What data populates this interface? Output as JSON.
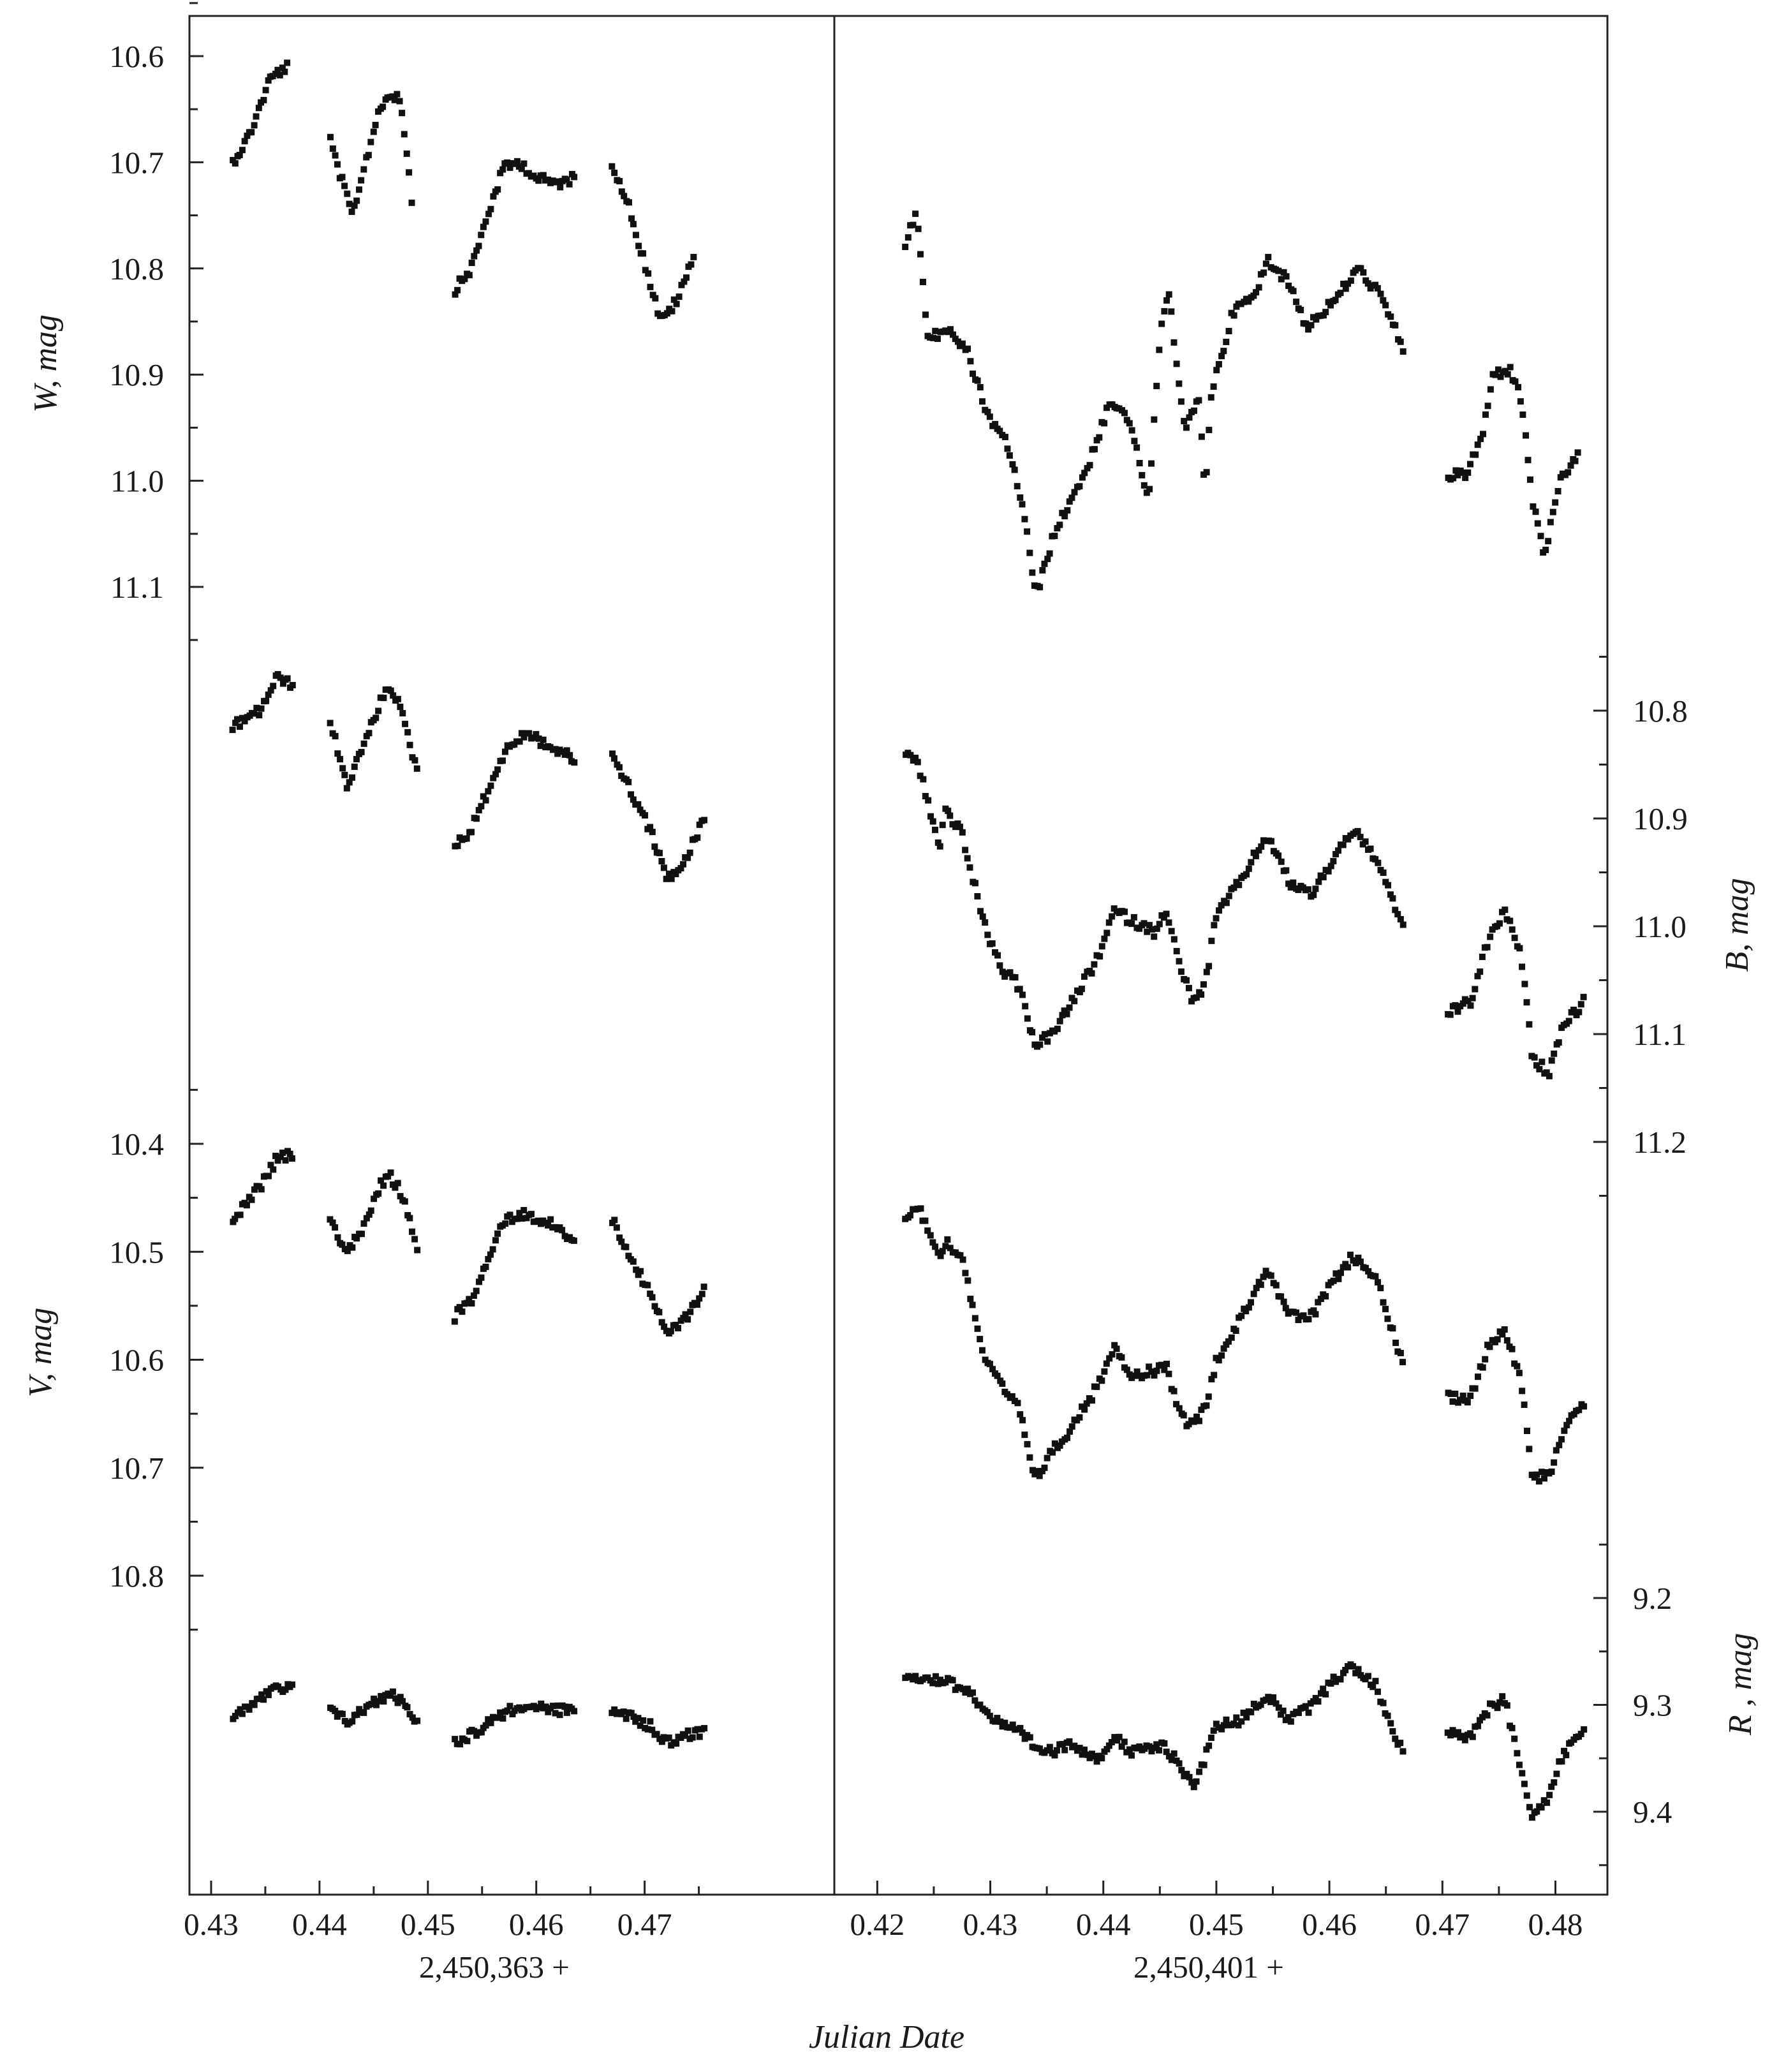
{
  "chart_data": {
    "type": "scatter",
    "xlabel": "Julian Date",
    "grid": false,
    "legend": "none",
    "marker_color": "#111111",
    "panels": [
      {
        "id": "left",
        "date_offset_label": "2,450,363 +",
        "x_ticks": [
          "0.43",
          "0.44",
          "0.45",
          "0.46",
          "0.47"
        ],
        "xlim": [
          0.428,
          0.4875
        ]
      },
      {
        "id": "right",
        "date_offset_label": "2,450,401 +",
        "x_ticks": [
          "0.42",
          "0.43",
          "0.44",
          "0.45",
          "0.46",
          "0.47",
          "0.48"
        ],
        "xlim": [
          0.4162,
          0.4846
        ]
      }
    ],
    "bands": [
      {
        "name": "W",
        "ylabel": "W, mag",
        "axis_side": "left",
        "y_ticks": [
          "10.6",
          "10.7",
          "10.8",
          "10.9",
          "11.0",
          "11.1"
        ],
        "y_anchor": [
          10.6,
          11.1
        ],
        "nodes_left": [
          [
            0.432,
            10.7
          ],
          [
            0.4335,
            10.675
          ],
          [
            0.4355,
            10.62
          ],
          [
            0.437,
            10.61
          ],
          [
            0.441,
            10.68
          ],
          [
            0.443,
            10.75
          ],
          [
            0.4445,
            10.69
          ],
          [
            0.4455,
            10.65
          ],
          [
            0.4465,
            10.635
          ],
          [
            0.4475,
            10.64
          ],
          [
            0.4485,
            10.735
          ],
          [
            0.4525,
            10.82
          ],
          [
            0.454,
            10.8
          ],
          [
            0.4555,
            10.75
          ],
          [
            0.457,
            10.705
          ],
          [
            0.4585,
            10.7
          ],
          [
            0.46,
            10.715
          ],
          [
            0.462,
            10.72
          ],
          [
            0.4635,
            10.715
          ],
          [
            0.467,
            10.7
          ],
          [
            0.4685,
            10.74
          ],
          [
            0.47,
            10.795
          ],
          [
            0.4715,
            10.85
          ],
          [
            0.473,
            10.83
          ],
          [
            0.4745,
            10.79
          ]
        ],
        "nodes_right": [
          [
            0.4225,
            10.775
          ],
          [
            0.4235,
            10.745
          ],
          [
            0.4245,
            10.87
          ],
          [
            0.426,
            10.855
          ],
          [
            0.428,
            10.88
          ],
          [
            0.43,
            10.945
          ],
          [
            0.4315,
            10.965
          ],
          [
            0.433,
            11.03
          ],
          [
            0.434,
            11.11
          ],
          [
            0.4355,
            11.055
          ],
          [
            0.437,
            11.02
          ],
          [
            0.4385,
            10.99
          ],
          [
            0.4405,
            10.93
          ],
          [
            0.442,
            10.935
          ],
          [
            0.4435,
            10.995
          ],
          [
            0.444,
            11.025
          ],
          [
            0.445,
            10.865
          ],
          [
            0.4458,
            10.825
          ],
          [
            0.4472,
            10.95
          ],
          [
            0.4485,
            10.925
          ],
          [
            0.449,
            11.015
          ],
          [
            0.4495,
            10.92
          ],
          [
            0.4515,
            10.84
          ],
          [
            0.4535,
            10.825
          ],
          [
            0.4545,
            10.79
          ],
          [
            0.4565,
            10.815
          ],
          [
            0.458,
            10.855
          ],
          [
            0.4605,
            10.83
          ],
          [
            0.4625,
            10.8
          ],
          [
            0.4645,
            10.825
          ],
          [
            0.4665,
            10.875
          ],
          [
            0.4705,
            10.995
          ],
          [
            0.472,
            10.995
          ],
          [
            0.4735,
            10.96
          ],
          [
            0.4745,
            10.9
          ],
          [
            0.476,
            10.895
          ],
          [
            0.477,
            10.925
          ],
          [
            0.478,
            11.02
          ],
          [
            0.479,
            11.07
          ],
          [
            0.4805,
            11.0
          ],
          [
            0.482,
            10.975
          ]
        ]
      },
      {
        "name": "B",
        "ylabel": "B, mag",
        "axis_side": "right",
        "y_ticks": [
          "10.8",
          "10.9",
          "11.0",
          "11.1",
          "11.2"
        ],
        "y_anchor": [
          10.8,
          11.2
        ],
        "nodes_left": [
          [
            0.432,
            10.815
          ],
          [
            0.4345,
            10.8
          ],
          [
            0.436,
            10.77
          ],
          [
            0.4375,
            10.775
          ],
          [
            0.441,
            10.81
          ],
          [
            0.4425,
            10.87
          ],
          [
            0.444,
            10.835
          ],
          [
            0.4455,
            10.795
          ],
          [
            0.4465,
            10.775
          ],
          [
            0.4475,
            10.8
          ],
          [
            0.449,
            10.855
          ],
          [
            0.4525,
            10.925
          ],
          [
            0.454,
            10.91
          ],
          [
            0.4555,
            10.875
          ],
          [
            0.457,
            10.84
          ],
          [
            0.459,
            10.82
          ],
          [
            0.4615,
            10.835
          ],
          [
            0.4635,
            10.845
          ],
          [
            0.467,
            10.84
          ],
          [
            0.4685,
            10.87
          ],
          [
            0.4705,
            10.91
          ],
          [
            0.472,
            10.955
          ],
          [
            0.4735,
            10.945
          ],
          [
            0.4755,
            10.9
          ]
        ],
        "nodes_right": [
          [
            0.4225,
            10.84
          ],
          [
            0.4235,
            10.845
          ],
          [
            0.4245,
            10.885
          ],
          [
            0.4255,
            10.93
          ],
          [
            0.426,
            10.89
          ],
          [
            0.4275,
            10.915
          ],
          [
            0.4295,
            11.0
          ],
          [
            0.431,
            11.04
          ],
          [
            0.4325,
            11.055
          ],
          [
            0.434,
            11.11
          ],
          [
            0.4355,
            11.1
          ],
          [
            0.437,
            11.075
          ],
          [
            0.4395,
            11.03
          ],
          [
            0.441,
            10.985
          ],
          [
            0.4425,
            10.995
          ],
          [
            0.4445,
            11.005
          ],
          [
            0.4455,
            10.985
          ],
          [
            0.447,
            11.045
          ],
          [
            0.448,
            11.07
          ],
          [
            0.449,
            11.055
          ],
          [
            0.45,
            10.99
          ],
          [
            0.452,
            10.96
          ],
          [
            0.4545,
            10.915
          ],
          [
            0.4565,
            10.96
          ],
          [
            0.4585,
            10.97
          ],
          [
            0.4605,
            10.935
          ],
          [
            0.462,
            10.91
          ],
          [
            0.464,
            10.935
          ],
          [
            0.4665,
            11.0
          ],
          [
            0.4705,
            11.08
          ],
          [
            0.4725,
            11.07
          ],
          [
            0.474,
            11.015
          ],
          [
            0.4755,
            10.985
          ],
          [
            0.477,
            11.03
          ],
          [
            0.478,
            11.125
          ],
          [
            0.4795,
            11.135
          ],
          [
            0.4805,
            11.095
          ],
          [
            0.4825,
            11.07
          ]
        ]
      },
      {
        "name": "V",
        "ylabel": "V, mag",
        "axis_side": "left",
        "y_ticks": [
          "10.4",
          "10.5",
          "10.6",
          "10.7",
          "10.8"
        ],
        "y_anchor": [
          10.4,
          10.8
        ],
        "nodes_left": [
          [
            0.432,
            10.47
          ],
          [
            0.4345,
            10.44
          ],
          [
            0.436,
            10.415
          ],
          [
            0.4375,
            10.41
          ],
          [
            0.441,
            10.47
          ],
          [
            0.4425,
            10.5
          ],
          [
            0.444,
            10.48
          ],
          [
            0.4455,
            10.44
          ],
          [
            0.4465,
            10.43
          ],
          [
            0.4475,
            10.445
          ],
          [
            0.449,
            10.495
          ],
          [
            0.4525,
            10.56
          ],
          [
            0.454,
            10.545
          ],
          [
            0.4555,
            10.51
          ],
          [
            0.457,
            10.47
          ],
          [
            0.459,
            10.465
          ],
          [
            0.4615,
            10.475
          ],
          [
            0.4635,
            10.49
          ],
          [
            0.467,
            10.47
          ],
          [
            0.4685,
            10.5
          ],
          [
            0.4705,
            10.54
          ],
          [
            0.472,
            10.575
          ],
          [
            0.4735,
            10.565
          ],
          [
            0.4755,
            10.535
          ]
        ],
        "nodes_right": [
          [
            0.4225,
            10.47
          ],
          [
            0.4235,
            10.455
          ],
          [
            0.4255,
            10.505
          ],
          [
            0.426,
            10.49
          ],
          [
            0.4275,
            10.505
          ],
          [
            0.4295,
            10.6
          ],
          [
            0.431,
            10.625
          ],
          [
            0.4325,
            10.645
          ],
          [
            0.434,
            10.71
          ],
          [
            0.4355,
            10.685
          ],
          [
            0.437,
            10.665
          ],
          [
            0.4395,
            10.625
          ],
          [
            0.441,
            10.585
          ],
          [
            0.4425,
            10.615
          ],
          [
            0.4445,
            10.61
          ],
          [
            0.4455,
            10.605
          ],
          [
            0.447,
            10.655
          ],
          [
            0.448,
            10.66
          ],
          [
            0.449,
            10.645
          ],
          [
            0.45,
            10.6
          ],
          [
            0.452,
            10.565
          ],
          [
            0.4545,
            10.515
          ],
          [
            0.4565,
            10.56
          ],
          [
            0.4585,
            10.56
          ],
          [
            0.4605,
            10.525
          ],
          [
            0.462,
            10.505
          ],
          [
            0.464,
            10.52
          ],
          [
            0.4665,
            10.605
          ],
          [
            0.4705,
            10.635
          ],
          [
            0.4725,
            10.635
          ],
          [
            0.474,
            10.59
          ],
          [
            0.4755,
            10.57
          ],
          [
            0.477,
            10.62
          ],
          [
            0.478,
            10.71
          ],
          [
            0.4795,
            10.705
          ],
          [
            0.4805,
            10.67
          ],
          [
            0.4825,
            10.64
          ]
        ]
      },
      {
        "name": "R",
        "ylabel": "R , mag",
        "axis_side": "right",
        "y_ticks": [
          "9.2",
          "9.3",
          "9.4"
        ],
        "y_anchor": [
          9.2,
          9.4
        ],
        "nodes_left": [
          [
            0.432,
            9.31
          ],
          [
            0.4345,
            9.295
          ],
          [
            0.436,
            9.285
          ],
          [
            0.4375,
            9.285
          ],
          [
            0.441,
            9.305
          ],
          [
            0.4425,
            9.315
          ],
          [
            0.444,
            9.305
          ],
          [
            0.4455,
            9.295
          ],
          [
            0.4465,
            9.29
          ],
          [
            0.4475,
            9.295
          ],
          [
            0.449,
            9.315
          ],
          [
            0.4525,
            9.335
          ],
          [
            0.4545,
            9.325
          ],
          [
            0.4565,
            9.31
          ],
          [
            0.459,
            9.3
          ],
          [
            0.4615,
            9.305
          ],
          [
            0.4635,
            9.305
          ],
          [
            0.467,
            9.305
          ],
          [
            0.4685,
            9.31
          ],
          [
            0.4705,
            9.32
          ],
          [
            0.472,
            9.335
          ],
          [
            0.4735,
            9.33
          ],
          [
            0.4755,
            9.325
          ]
        ],
        "nodes_right": [
          [
            0.4225,
            9.27
          ],
          [
            0.4245,
            9.275
          ],
          [
            0.4265,
            9.28
          ],
          [
            0.428,
            9.285
          ],
          [
            0.4295,
            9.305
          ],
          [
            0.431,
            9.32
          ],
          [
            0.4325,
            9.325
          ],
          [
            0.434,
            9.34
          ],
          [
            0.4355,
            9.345
          ],
          [
            0.437,
            9.335
          ],
          [
            0.4395,
            9.35
          ],
          [
            0.441,
            9.33
          ],
          [
            0.4425,
            9.345
          ],
          [
            0.4445,
            9.34
          ],
          [
            0.4455,
            9.34
          ],
          [
            0.447,
            9.36
          ],
          [
            0.448,
            9.375
          ],
          [
            0.449,
            9.35
          ],
          [
            0.45,
            9.32
          ],
          [
            0.452,
            9.315
          ],
          [
            0.4545,
            9.29
          ],
          [
            0.4565,
            9.315
          ],
          [
            0.4585,
            9.3
          ],
          [
            0.4605,
            9.275
          ],
          [
            0.462,
            9.265
          ],
          [
            0.464,
            9.28
          ],
          [
            0.4665,
            9.345
          ],
          [
            0.4705,
            9.325
          ],
          [
            0.4725,
            9.33
          ],
          [
            0.474,
            9.305
          ],
          [
            0.4755,
            9.295
          ],
          [
            0.477,
            9.36
          ],
          [
            0.478,
            9.405
          ],
          [
            0.4795,
            9.385
          ],
          [
            0.4805,
            9.35
          ],
          [
            0.4825,
            9.32
          ]
        ]
      }
    ]
  }
}
